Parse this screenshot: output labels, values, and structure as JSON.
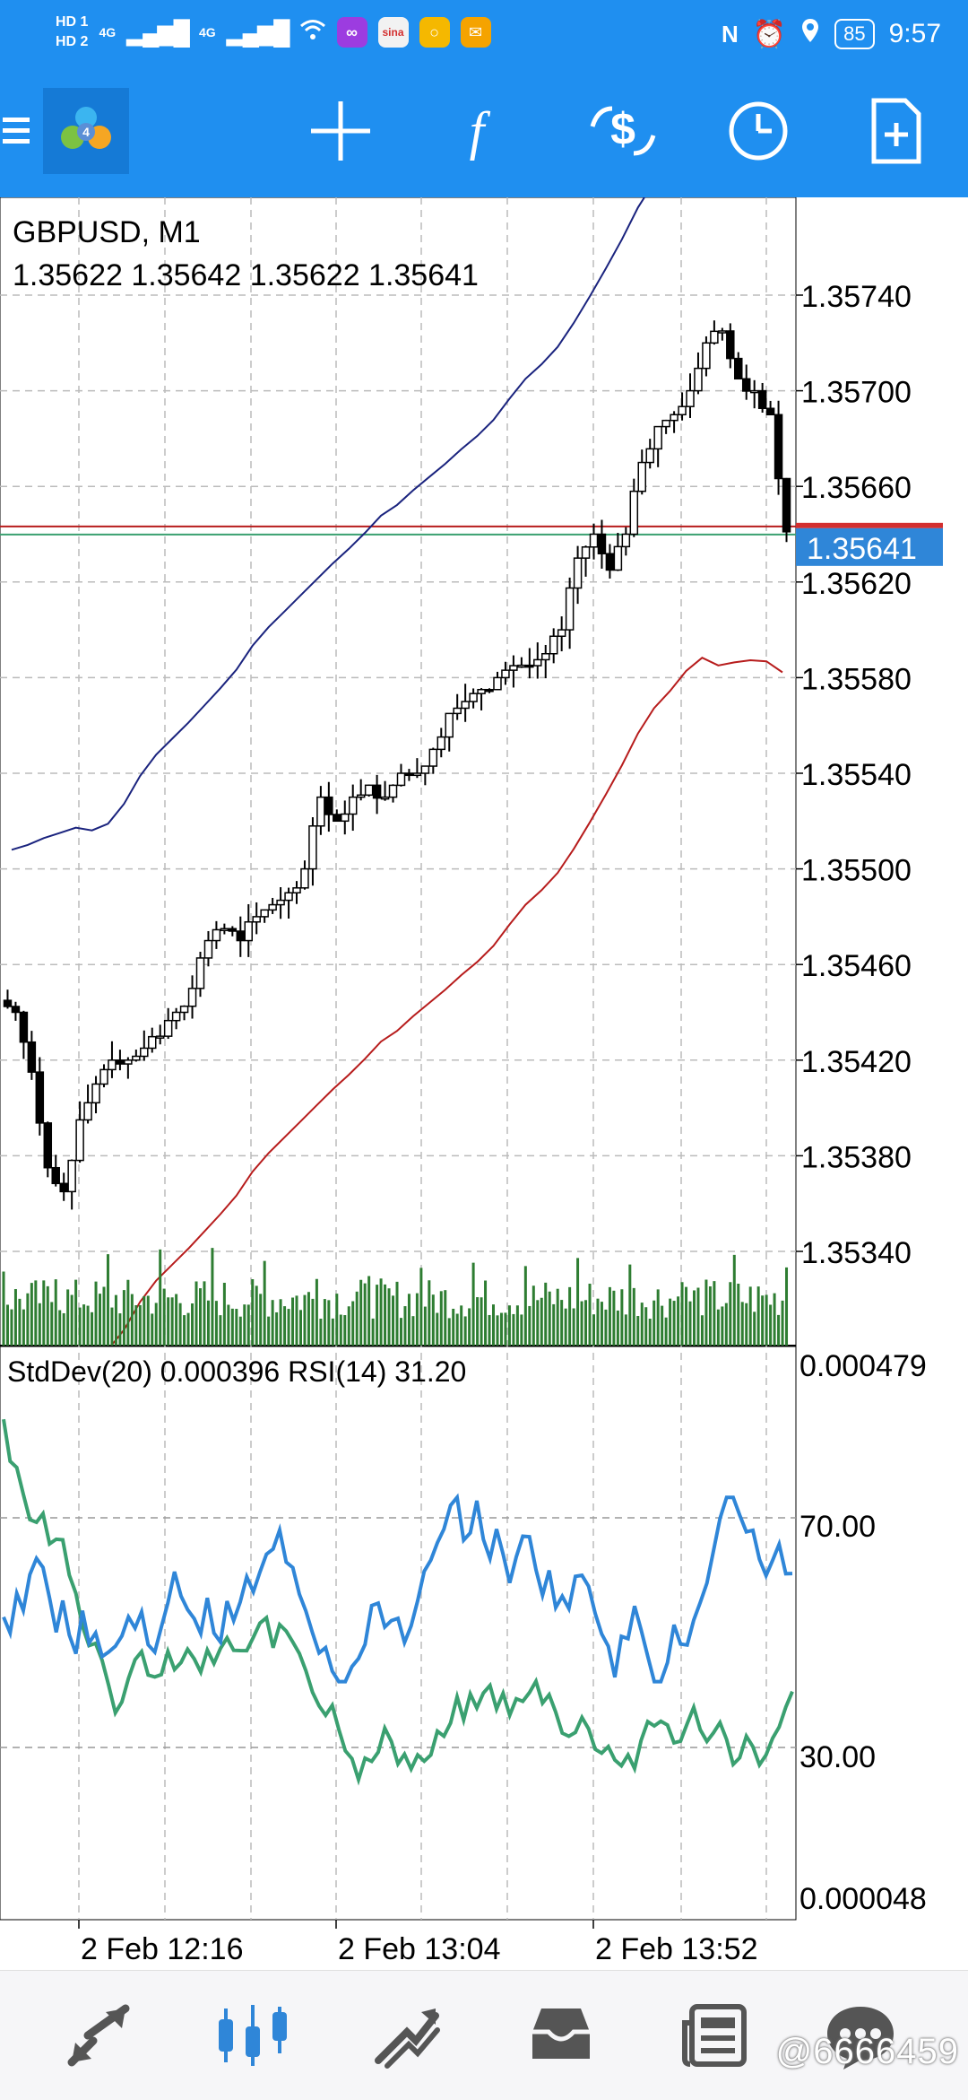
{
  "status_bar": {
    "hd1": "HD 1",
    "hd2": "HD 2",
    "net1": "4G",
    "net2": "4G",
    "battery": "85",
    "time": "9:57"
  },
  "toolbar": {
    "icons": [
      "menu-icon",
      "app-logo",
      "crosshair-icon",
      "function-icon",
      "currency-exchange-icon",
      "clock-icon",
      "add-document-icon"
    ],
    "accent_color": "#1f8ff0"
  },
  "chart": {
    "symbol_timeframe": "GBPUSD, M1",
    "ohlc": "1.35622 1.35642 1.35622 1.35641",
    "current_price": "1.35641",
    "price_ticks": [
      "1.35740",
      "1.35700",
      "1.35660",
      "1.35620",
      "1.35580",
      "1.35540",
      "1.35500",
      "1.35460",
      "1.35420",
      "1.35380",
      "1.35340"
    ],
    "indicator_label": "StdDev(20) 0.000396 RSI(14) 31.20",
    "indicator_ticks": [
      "0.000479",
      "70.00",
      "30.00",
      "0.000048"
    ],
    "time_labels": [
      "2 Feb 12:16",
      "2 Feb 13:04",
      "2 Feb 13:52"
    ],
    "colors": {
      "upper_band": "#1a237e",
      "lower_band": "#b71c1c",
      "candles": "#000000",
      "volume": "#2e7d32",
      "rsi": "#2f86d8",
      "stddev": "#3aa070",
      "ask_line": "#b71c1c",
      "bid_line": "#3aa070",
      "price_tag": "#2f86d8"
    }
  },
  "chart_data": {
    "type": "line",
    "title": "GBPUSD, M1",
    "ylim": [
      1.353,
      1.3578
    ],
    "x_ticks": [
      "2 Feb 12:16",
      "2 Feb 13:04",
      "2 Feb 13:52"
    ],
    "series": [
      {
        "values": [
          1.3544,
          1.35415,
          1.35375,
          1.35365,
          1.35395,
          1.3541,
          1.3542,
          1.3542,
          1.35425,
          1.3543,
          1.3544,
          1.3545,
          1.3547,
          1.35475,
          1.3547,
          1.3548,
          1.35485,
          1.3549,
          1.355,
          1.3553,
          1.3552,
          1.3553,
          1.35535,
          1.3553,
          1.3554,
          1.3554,
          1.3555,
          1.35565,
          1.3557,
          1.35575,
          1.3558,
          1.35585,
          1.35585,
          1.3559,
          1.356,
          1.3563,
          1.3564,
          1.35625,
          1.3564,
          1.3567,
          1.35685,
          1.3569,
          1.357,
          1.3572,
          1.35725,
          1.35705,
          1.357,
          1.3569,
          1.35641
        ]
      }
    ]
  },
  "bottom_nav": {
    "items": [
      "quotes-icon",
      "chart-icon",
      "trade-icon",
      "history-icon",
      "news-icon",
      "messages-icon"
    ]
  },
  "watermark": "@6666459"
}
